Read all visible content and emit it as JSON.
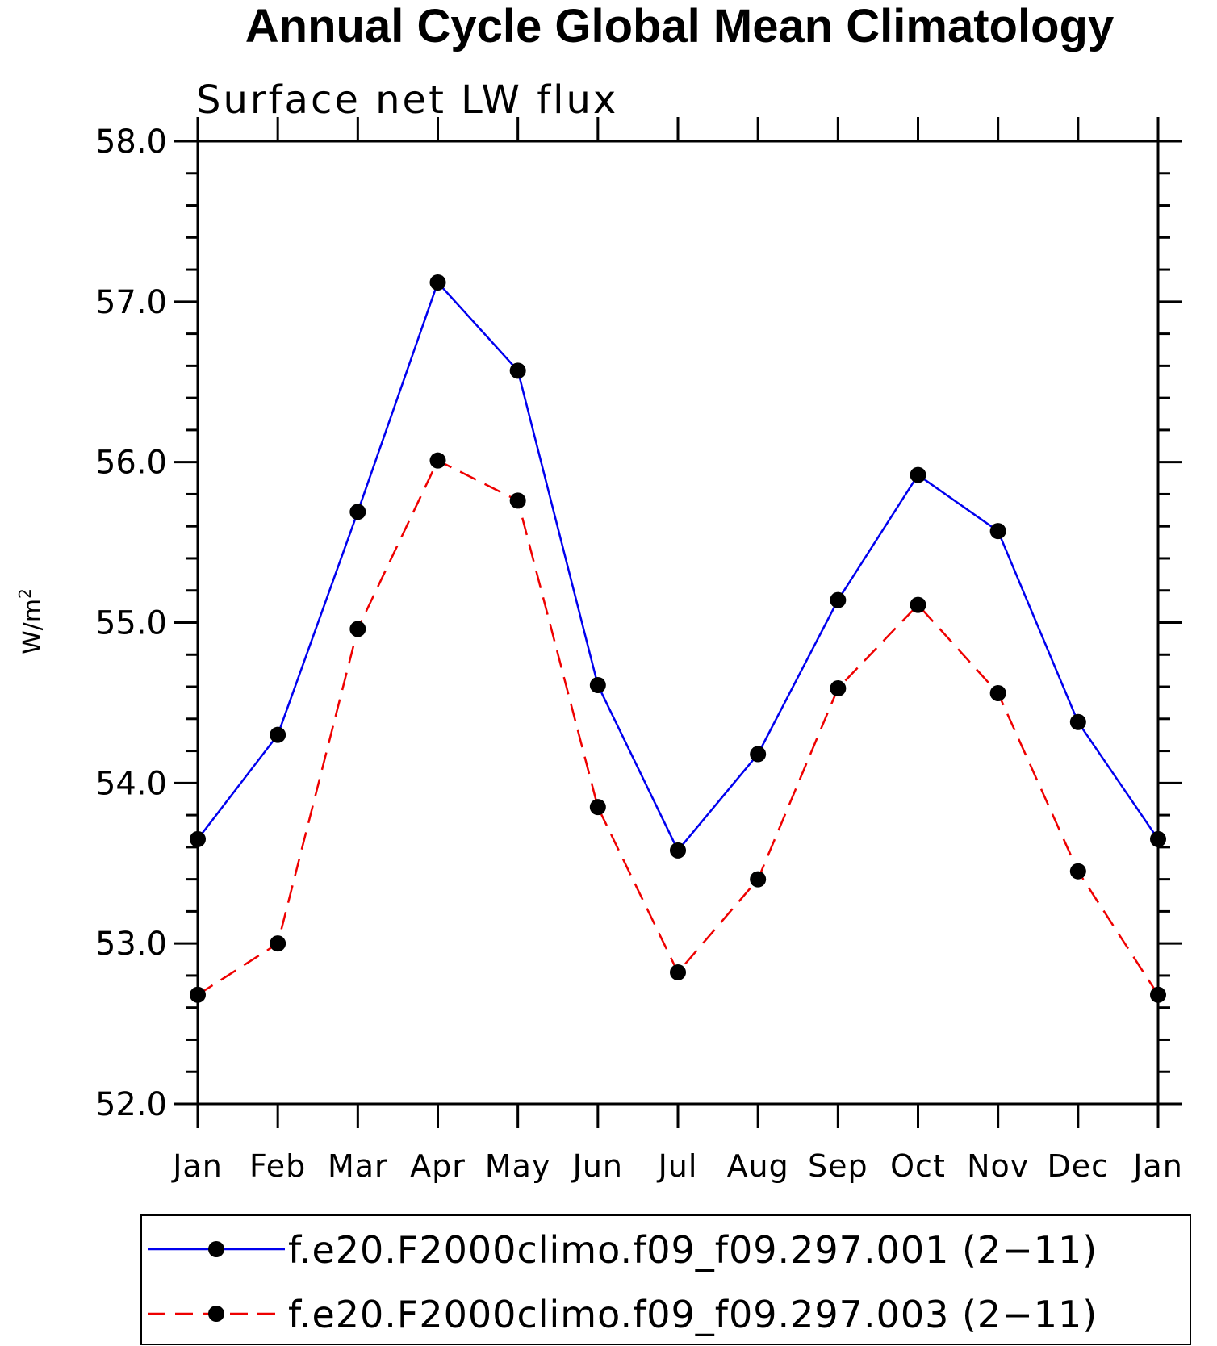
{
  "chart_data": {
    "type": "line",
    "title": "Annual Cycle Global Mean Climatology",
    "subtitle": "Surface net LW flux",
    "xlabel": "",
    "ylabel": "W/m",
    "ylabel_superscript": "2",
    "categories": [
      "Jan",
      "Feb",
      "Mar",
      "Apr",
      "May",
      "Jun",
      "Jul",
      "Aug",
      "Sep",
      "Oct",
      "Nov",
      "Dec",
      "Jan"
    ],
    "ylim": [
      52.0,
      58.0
    ],
    "yticks": [
      "52.0",
      "53.0",
      "54.0",
      "55.0",
      "56.0",
      "57.0",
      "58.0"
    ],
    "series": [
      {
        "name": "f.e20.F2000climo.f09_f09.297.001 (2−11)",
        "color": "#0000ee",
        "dash": "solid",
        "marker_color": "#000000",
        "values": [
          53.65,
          54.3,
          55.69,
          57.12,
          56.57,
          54.61,
          53.58,
          54.18,
          55.14,
          55.92,
          55.57,
          54.38,
          53.65
        ]
      },
      {
        "name": "f.e20.F2000climo.f09_f09.297.003 (2−11)",
        "color": "#ee0000",
        "dash": "dashed",
        "marker_color": "#000000",
        "values": [
          52.68,
          53.0,
          54.96,
          56.01,
          55.76,
          53.85,
          52.82,
          53.4,
          54.59,
          55.11,
          54.56,
          53.45,
          52.68
        ]
      }
    ],
    "legend_position": "bottom"
  }
}
